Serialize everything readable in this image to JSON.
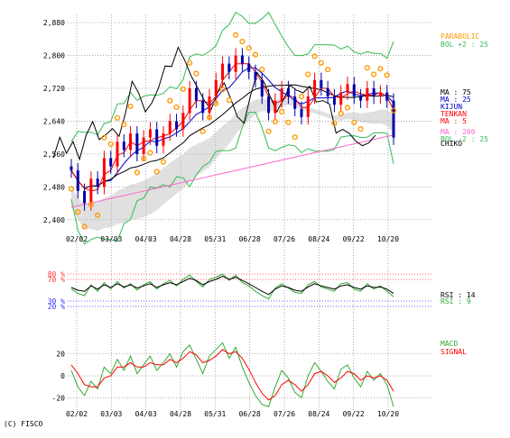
{
  "copyright": "(C) FISCO",
  "colors": {
    "candle_up": "#ff0000",
    "candle_down": "#0000aa",
    "parabolic": "#ff9900",
    "bollinger": "#33bb55",
    "ma5": "#ff0000",
    "ma25": "#0000cc",
    "ma75": "#000000",
    "ma200": "#ff66cc",
    "chiko": "#000000",
    "kumo": "#bbbbbb",
    "rsi14": "#000000",
    "rsi9": "#33aa33",
    "macd": "#33aa33",
    "signal": "#ff0000",
    "grid": "#999999"
  },
  "chart_data": [
    {
      "type": "candlestick",
      "x_ticks": [
        "02/02",
        "03/03",
        "04/03",
        "04/28",
        "05/31",
        "06/28",
        "07/26",
        "08/24",
        "09/22",
        "10/20"
      ],
      "y_ticks": [
        "2,880",
        "2,800",
        "2,720",
        "2,640",
        "2,560",
        "2,480",
        "2,400"
      ],
      "ylim": [
        2360,
        2900
      ],
      "grid": true,
      "legend": [
        {
          "text": "PARABOLIC",
          "color": "#ff9900"
        },
        {
          "text": "BOL +2 : 25",
          "color": "#33bb55"
        },
        {
          "text": "MA : 75",
          "color": "#000000"
        },
        {
          "text": "MA : 25",
          "color": "#0000cc"
        },
        {
          "text": "KIJUN",
          "color": "#0000cc"
        },
        {
          "text": "TENKAN",
          "color": "#ff0000"
        },
        {
          "text": "MA : 5",
          "color": "#ff0000"
        },
        {
          "text": "MA : 200",
          "color": "#ff66cc"
        },
        {
          "text": "BOL -2 : 25",
          "color": "#33bb55"
        },
        {
          "text": "CHIKO",
          "color": "#000000"
        }
      ],
      "close_path": [
        2520,
        2470,
        2440,
        2500,
        2480,
        2550,
        2530,
        2590,
        2570,
        2610,
        2560,
        2600,
        2620,
        2580,
        2610,
        2640,
        2620,
        2660,
        2720,
        2690,
        2660,
        2700,
        2740,
        2780,
        2760,
        2800,
        2780,
        2760,
        2740,
        2700,
        2660,
        2690,
        2720,
        2700,
        2670,
        2650,
        2700,
        2740,
        2720,
        2700,
        2680,
        2710,
        2730,
        2700,
        2690,
        2720,
        2700,
        2710,
        2690,
        2600
      ]
    },
    {
      "type": "line",
      "name_panel": "RSI",
      "y_ticks_top": [
        "80 %",
        "70 %"
      ],
      "y_ticks_bottom": [
        "30 %",
        "20 %"
      ],
      "ylim": [
        0,
        100
      ],
      "reference_lines": [
        80,
        70,
        30,
        20
      ],
      "series": [
        {
          "name": "RSI : 14",
          "values": [
            55,
            50,
            48,
            58,
            52,
            60,
            55,
            62,
            56,
            60,
            54,
            58,
            62,
            55,
            60,
            64,
            60,
            66,
            72,
            68,
            60,
            66,
            70,
            76,
            70,
            74,
            68,
            62,
            55,
            48,
            42,
            52,
            58,
            55,
            50,
            48,
            56,
            62,
            58,
            55,
            52,
            58,
            60,
            55,
            52,
            58,
            55,
            56,
            52,
            44
          ]
        },
        {
          "name": "RSI : 9",
          "values": [
            52,
            44,
            40,
            60,
            48,
            64,
            52,
            66,
            54,
            62,
            50,
            60,
            66,
            52,
            62,
            68,
            58,
            70,
            78,
            66,
            56,
            70,
            74,
            80,
            68,
            78,
            64,
            58,
            48,
            40,
            34,
            54,
            62,
            54,
            46,
            44,
            60,
            66,
            56,
            52,
            48,
            62,
            64,
            52,
            48,
            62,
            52,
            58,
            48,
            38
          ]
        }
      ]
    },
    {
      "type": "line",
      "name_panel": "MACD",
      "y_ticks": [
        "20",
        "0",
        "-20"
      ],
      "ylim": [
        -32,
        32
      ],
      "series": [
        {
          "name": "MACD",
          "values": [
            5,
            -10,
            -18,
            -5,
            -12,
            8,
            2,
            15,
            5,
            18,
            2,
            10,
            18,
            5,
            12,
            20,
            8,
            22,
            28,
            15,
            2,
            18,
            24,
            30,
            16,
            26,
            8,
            -6,
            -18,
            -26,
            -28,
            -10,
            5,
            -2,
            -15,
            -20,
            0,
            12,
            4,
            -5,
            -12,
            6,
            10,
            -2,
            -10,
            4,
            -4,
            2,
            -8,
            -28
          ]
        },
        {
          "name": "SIGNAL",
          "values": [
            10,
            2,
            -8,
            -10,
            -10,
            -2,
            0,
            8,
            8,
            12,
            8,
            8,
            12,
            10,
            10,
            15,
            12,
            16,
            22,
            19,
            12,
            14,
            18,
            24,
            20,
            22,
            16,
            6,
            -6,
            -16,
            -22,
            -18,
            -8,
            -4,
            -8,
            -14,
            -8,
            2,
            4,
            0,
            -6,
            -2,
            4,
            2,
            -4,
            0,
            -2,
            0,
            -4,
            -14
          ]
        }
      ]
    }
  ]
}
